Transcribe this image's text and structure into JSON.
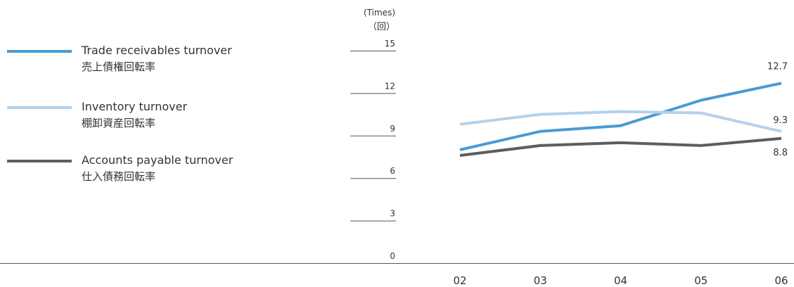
{
  "chart_data": {
    "type": "line",
    "unit_label": "(Times)",
    "unit_label_ja": "（回）",
    "categories": [
      "02",
      "03",
      "04",
      "05",
      "06"
    ],
    "yticks": [
      0,
      3,
      6,
      9,
      12,
      15
    ],
    "ylim": [
      0,
      15
    ],
    "grid": false,
    "legend_position": "left",
    "series": [
      {
        "name": "Trade receivables turnover",
        "name_ja": "売上債権回転率",
        "color": "#4a9ad4",
        "values": [
          8.0,
          9.3,
          9.7,
          11.5,
          12.7
        ],
        "end_label": "12.7"
      },
      {
        "name": "Inventory turnover",
        "name_ja": "棚卸資産回転率",
        "color": "#b3d1ec",
        "values": [
          9.8,
          10.5,
          10.7,
          10.6,
          9.3
        ],
        "end_label": "9.3"
      },
      {
        "name": "Accounts payable turnover",
        "name_ja": "仕入債務回転率",
        "color": "#5a5e5f",
        "values": [
          7.6,
          8.3,
          8.5,
          8.3,
          8.8
        ],
        "end_label": "8.8"
      }
    ]
  }
}
